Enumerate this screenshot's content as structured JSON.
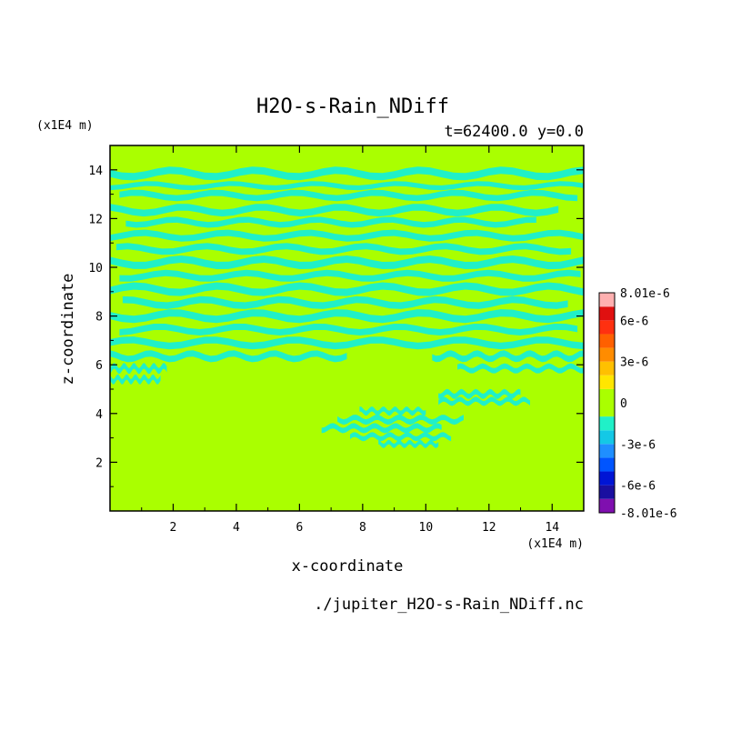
{
  "chart_data": {
    "type": "heatmap",
    "title": "H2O-s-Rain_NDiff",
    "subtitle": "t=62400.0 y=0.0",
    "xlabel": "x-coordinate",
    "ylabel": "z-coordinate",
    "x_unit": "(x1E4 m)",
    "y_unit": "(x1E4 m)",
    "xlim": [
      0,
      15
    ],
    "ylim": [
      0,
      15
    ],
    "x_ticks": [
      2,
      4,
      6,
      8,
      10,
      12,
      14
    ],
    "y_ticks": [
      2,
      4,
      6,
      8,
      10,
      12,
      14
    ],
    "grid": false,
    "footer": "./jupiter_H2O-s-Rain_NDiff.nc",
    "colorbar": {
      "labels": [
        "8.01e-6",
        "6e-6",
        "3e-6",
        "0",
        "-3e-6",
        "-6e-6",
        "-8.01e-6"
      ],
      "label_values": [
        8.01e-06,
        6e-06,
        3e-06,
        0,
        -3e-06,
        -6e-06,
        -8.01e-06
      ],
      "levels": [
        -8.01e-06,
        -7e-06,
        -6e-06,
        -5e-06,
        -4e-06,
        -3e-06,
        -2e-06,
        -1e-06,
        1e-06,
        2e-06,
        3e-06,
        4e-06,
        5e-06,
        6e-06,
        7e-06,
        8.01e-06
      ],
      "colors": [
        "#7f0faf",
        "#1a0fa0",
        "#0015d5",
        "#0055ff",
        "#1f8fff",
        "#14c8e6",
        "#20f0c8",
        "#aaff00",
        "#ffe600",
        "#ffc000",
        "#ff8c00",
        "#ff6000",
        "#ff3010",
        "#e01010",
        "#ffb0b0"
      ]
    },
    "field": {
      "background_value": 0,
      "background_color": "#aaff00",
      "band_color": "#20f0c8",
      "band_value": "-1e-6",
      "bands": [
        {
          "z": 13.85,
          "x0": 0.0,
          "x1": 15.0,
          "th": 0.3
        },
        {
          "z": 13.35,
          "x0": 0.0,
          "x1": 15.0,
          "th": 0.2
        },
        {
          "z": 12.95,
          "x0": 0.3,
          "x1": 14.8,
          "th": 0.25
        },
        {
          "z": 12.35,
          "x0": 0.0,
          "x1": 14.2,
          "th": 0.28
        },
        {
          "z": 11.85,
          "x0": 0.5,
          "x1": 13.5,
          "th": 0.24
        },
        {
          "z": 11.3,
          "x0": 0.0,
          "x1": 15.0,
          "th": 0.26
        },
        {
          "z": 10.75,
          "x0": 0.2,
          "x1": 14.6,
          "th": 0.26
        },
        {
          "z": 10.2,
          "x0": 0.0,
          "x1": 15.0,
          "th": 0.3
        },
        {
          "z": 9.65,
          "x0": 0.3,
          "x1": 14.9,
          "th": 0.26
        },
        {
          "z": 9.1,
          "x0": 0.0,
          "x1": 15.0,
          "th": 0.3
        },
        {
          "z": 8.55,
          "x0": 0.4,
          "x1": 14.5,
          "th": 0.28
        },
        {
          "z": 8.0,
          "x0": 0.0,
          "x1": 15.0,
          "th": 0.3
        },
        {
          "z": 7.45,
          "x0": 0.3,
          "x1": 14.8,
          "th": 0.26
        },
        {
          "z": 6.9,
          "x0": 0.0,
          "x1": 15.0,
          "th": 0.28
        },
        {
          "z": 6.35,
          "x0": 0.0,
          "x1": 7.5,
          "th": 0.26
        },
        {
          "z": 6.35,
          "x0": 10.2,
          "x1": 15.0,
          "th": 0.26
        },
        {
          "z": 5.85,
          "x0": 0.0,
          "x1": 1.8,
          "th": 0.24
        },
        {
          "z": 5.85,
          "x0": 11.0,
          "x1": 15.0,
          "th": 0.22
        },
        {
          "z": 5.4,
          "x0": 0.0,
          "x1": 1.6,
          "th": 0.22
        },
        {
          "z": 4.8,
          "x0": 10.4,
          "x1": 13.0,
          "th": 0.22
        },
        {
          "z": 4.5,
          "x0": 10.4,
          "x1": 13.3,
          "th": 0.2
        },
        {
          "z": 4.1,
          "x0": 7.9,
          "x1": 10.0,
          "th": 0.2
        },
        {
          "z": 3.75,
          "x0": 7.2,
          "x1": 11.2,
          "th": 0.22
        },
        {
          "z": 3.4,
          "x0": 6.7,
          "x1": 10.5,
          "th": 0.22
        },
        {
          "z": 3.05,
          "x0": 7.6,
          "x1": 10.8,
          "th": 0.2
        },
        {
          "z": 2.75,
          "x0": 8.5,
          "x1": 10.4,
          "th": 0.18
        }
      ]
    }
  }
}
